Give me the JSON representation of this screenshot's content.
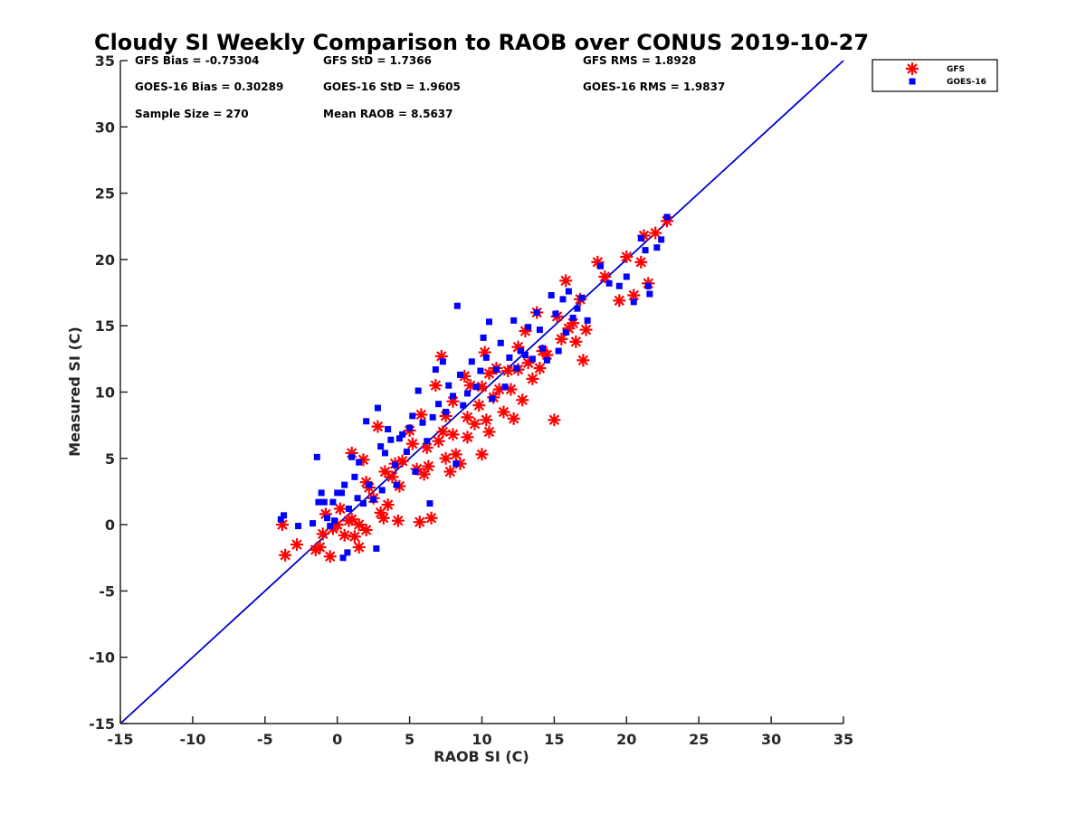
{
  "chart_data": {
    "type": "scatter",
    "title": "Cloudy SI Weekly Comparison to RAOB over CONUS 2019-10-27",
    "xlabel": "RAOB SI (C)",
    "ylabel": "Measured SI (C)",
    "xlim": [
      -15,
      35
    ],
    "ylim": [
      -15,
      35
    ],
    "xticks": [
      "-15",
      "-10",
      "-5",
      "0",
      "5",
      "10",
      "15",
      "20",
      "25",
      "30",
      "35"
    ],
    "yticks": [
      "-15",
      "-10",
      "-5",
      "0",
      "5",
      "10",
      "15",
      "20",
      "25",
      "30",
      "35"
    ],
    "grid": false,
    "legend_position": "top-right, outside plot",
    "reference_line": {
      "from": [
        -15,
        -15
      ],
      "to": [
        35,
        35
      ],
      "color": "#0000cc"
    },
    "stats": [
      {
        "label": "GFS Bias = -0.75304",
        "row": 0,
        "col": 0
      },
      {
        "label": "GFS StD = 1.7366",
        "row": 0,
        "col": 1
      },
      {
        "label": "GFS RMS = 1.8928",
        "row": 0,
        "col": 2
      },
      {
        "label": "GOES-16 Bias = 0.30289",
        "row": 1,
        "col": 0
      },
      {
        "label": "GOES-16 StD = 1.9605",
        "row": 1,
        "col": 1
      },
      {
        "label": "GOES-16 RMS = 1.9837",
        "row": 1,
        "col": 2
      },
      {
        "label": "Sample Size = 270",
        "row": 2,
        "col": 0
      },
      {
        "label": "Mean RAOB = 8.5637",
        "row": 2,
        "col": 1
      }
    ],
    "series": [
      {
        "name": "GFS",
        "marker": "asterisk",
        "color": "#ff0000",
        "points": [
          [
            -3.8,
            0.0
          ],
          [
            -3.6,
            -2.3
          ],
          [
            -2.8,
            -1.5
          ],
          [
            -1.5,
            -1.9
          ],
          [
            -1.2,
            -1.7
          ],
          [
            -1.0,
            -0.7
          ],
          [
            -0.8,
            0.8
          ],
          [
            -0.5,
            -2.4
          ],
          [
            -0.3,
            -0.3
          ],
          [
            0.0,
            0.0
          ],
          [
            0.2,
            1.2
          ],
          [
            0.5,
            -0.8
          ],
          [
            0.8,
            0.3
          ],
          [
            1.0,
            0.4
          ],
          [
            1.0,
            5.4
          ],
          [
            1.2,
            -0.9
          ],
          [
            1.5,
            0.0
          ],
          [
            1.5,
            -1.7
          ],
          [
            1.8,
            4.9
          ],
          [
            2.0,
            3.2
          ],
          [
            2.0,
            -0.4
          ],
          [
            2.2,
            2.8
          ],
          [
            2.5,
            2.0
          ],
          [
            2.8,
            7.4
          ],
          [
            3.0,
            0.9
          ],
          [
            3.2,
            0.5
          ],
          [
            3.3,
            4.0
          ],
          [
            3.5,
            1.5
          ],
          [
            3.8,
            3.6
          ],
          [
            4.0,
            4.6
          ],
          [
            4.2,
            0.3
          ],
          [
            4.3,
            2.9
          ],
          [
            4.5,
            4.8
          ],
          [
            5.0,
            7.1
          ],
          [
            5.2,
            6.1
          ],
          [
            5.5,
            4.2
          ],
          [
            5.7,
            0.2
          ],
          [
            5.8,
            8.3
          ],
          [
            6.0,
            3.8
          ],
          [
            6.2,
            5.8
          ],
          [
            6.3,
            4.4
          ],
          [
            6.5,
            0.5
          ],
          [
            6.8,
            10.5
          ],
          [
            7.0,
            6.3
          ],
          [
            7.2,
            12.7
          ],
          [
            7.3,
            7.0
          ],
          [
            7.5,
            5.0
          ],
          [
            7.5,
            8.2
          ],
          [
            7.8,
            4.0
          ],
          [
            8.0,
            9.3
          ],
          [
            8.0,
            6.8
          ],
          [
            8.2,
            5.3
          ],
          [
            8.5,
            4.6
          ],
          [
            8.8,
            11.2
          ],
          [
            9.0,
            8.1
          ],
          [
            9.0,
            6.6
          ],
          [
            9.2,
            10.5
          ],
          [
            9.5,
            7.6
          ],
          [
            9.8,
            9.0
          ],
          [
            10.0,
            10.4
          ],
          [
            10.0,
            5.3
          ],
          [
            10.2,
            13.0
          ],
          [
            10.3,
            7.9
          ],
          [
            10.5,
            11.4
          ],
          [
            10.5,
            7.0
          ],
          [
            10.8,
            9.6
          ],
          [
            11.0,
            11.8
          ],
          [
            11.2,
            10.2
          ],
          [
            11.5,
            8.5
          ],
          [
            11.8,
            11.6
          ],
          [
            12.0,
            10.2
          ],
          [
            12.2,
            8.0
          ],
          [
            12.5,
            11.7
          ],
          [
            12.5,
            13.4
          ],
          [
            12.8,
            9.4
          ],
          [
            13.0,
            14.6
          ],
          [
            13.2,
            12.2
          ],
          [
            13.5,
            11.0
          ],
          [
            13.8,
            16.0
          ],
          [
            14.0,
            11.8
          ],
          [
            14.2,
            13.1
          ],
          [
            14.5,
            12.8
          ],
          [
            15.0,
            7.9
          ],
          [
            15.2,
            15.7
          ],
          [
            15.5,
            14.0
          ],
          [
            15.8,
            18.4
          ],
          [
            16.0,
            14.8
          ],
          [
            16.3,
            15.2
          ],
          [
            16.5,
            13.8
          ],
          [
            16.8,
            17.0
          ],
          [
            17.0,
            12.4
          ],
          [
            17.2,
            14.7
          ],
          [
            18.0,
            19.8
          ],
          [
            18.5,
            18.7
          ],
          [
            19.5,
            16.9
          ],
          [
            20.0,
            20.2
          ],
          [
            20.5,
            17.3
          ],
          [
            21.0,
            19.8
          ],
          [
            21.2,
            21.8
          ],
          [
            21.5,
            18.2
          ],
          [
            22.0,
            22.0
          ],
          [
            22.8,
            22.9
          ]
        ]
      },
      {
        "name": "GOES-16",
        "marker": "square",
        "color": "#0000ff",
        "points": [
          [
            -3.9,
            0.4
          ],
          [
            -3.7,
            0.7
          ],
          [
            -2.7,
            -0.1
          ],
          [
            -1.7,
            0.1
          ],
          [
            -1.4,
            5.1
          ],
          [
            -1.3,
            1.7
          ],
          [
            -1.1,
            2.4
          ],
          [
            -0.9,
            1.7
          ],
          [
            -0.7,
            0.5
          ],
          [
            -0.5,
            -0.1
          ],
          [
            -0.3,
            1.7
          ],
          [
            -0.2,
            0.3
          ],
          [
            0.0,
            2.4
          ],
          [
            0.3,
            2.4
          ],
          [
            0.4,
            -2.5
          ],
          [
            0.5,
            3.0
          ],
          [
            0.7,
            -2.1
          ],
          [
            0.8,
            1.2
          ],
          [
            1.0,
            5.1
          ],
          [
            1.2,
            3.6
          ],
          [
            1.4,
            2.0
          ],
          [
            1.5,
            4.7
          ],
          [
            1.8,
            1.6
          ],
          [
            2.0,
            7.8
          ],
          [
            2.2,
            3.0
          ],
          [
            2.5,
            1.9
          ],
          [
            2.7,
            -1.8
          ],
          [
            2.8,
            8.8
          ],
          [
            3.0,
            5.9
          ],
          [
            3.1,
            2.6
          ],
          [
            3.3,
            5.4
          ],
          [
            3.5,
            7.2
          ],
          [
            3.7,
            6.4
          ],
          [
            4.0,
            4.5
          ],
          [
            4.1,
            3.0
          ],
          [
            4.3,
            6.5
          ],
          [
            4.5,
            6.8
          ],
          [
            4.8,
            5.5
          ],
          [
            5.0,
            7.3
          ],
          [
            5.2,
            8.2
          ],
          [
            5.4,
            4.0
          ],
          [
            5.6,
            10.1
          ],
          [
            5.9,
            7.7
          ],
          [
            6.2,
            6.3
          ],
          [
            6.4,
            1.6
          ],
          [
            6.6,
            8.1
          ],
          [
            6.8,
            11.7
          ],
          [
            7.0,
            9.1
          ],
          [
            7.3,
            12.3
          ],
          [
            7.5,
            8.5
          ],
          [
            7.7,
            10.5
          ],
          [
            8.0,
            9.7
          ],
          [
            8.2,
            4.6
          ],
          [
            8.3,
            16.5
          ],
          [
            8.5,
            11.3
          ],
          [
            8.7,
            9.0
          ],
          [
            9.0,
            9.9
          ],
          [
            9.3,
            12.3
          ],
          [
            9.6,
            10.4
          ],
          [
            9.9,
            11.6
          ],
          [
            10.1,
            14.1
          ],
          [
            10.3,
            12.6
          ],
          [
            10.5,
            15.3
          ],
          [
            10.7,
            9.5
          ],
          [
            11.0,
            11.7
          ],
          [
            11.3,
            13.7
          ],
          [
            11.6,
            10.4
          ],
          [
            11.9,
            12.6
          ],
          [
            12.2,
            15.4
          ],
          [
            12.4,
            11.8
          ],
          [
            12.7,
            13.1
          ],
          [
            13.0,
            12.8
          ],
          [
            13.2,
            14.9
          ],
          [
            13.5,
            12.5
          ],
          [
            13.8,
            16.0
          ],
          [
            14.0,
            14.7
          ],
          [
            14.2,
            13.3
          ],
          [
            14.5,
            12.4
          ],
          [
            14.8,
            17.3
          ],
          [
            15.1,
            15.9
          ],
          [
            15.3,
            13.1
          ],
          [
            15.6,
            17.0
          ],
          [
            15.8,
            14.5
          ],
          [
            16.0,
            17.6
          ],
          [
            16.3,
            15.6
          ],
          [
            16.6,
            16.3
          ],
          [
            16.9,
            17.1
          ],
          [
            17.3,
            15.4
          ],
          [
            18.2,
            19.5
          ],
          [
            18.8,
            18.2
          ],
          [
            19.5,
            18.0
          ],
          [
            20.0,
            18.7
          ],
          [
            20.5,
            16.8
          ],
          [
            21.0,
            21.6
          ],
          [
            21.3,
            20.7
          ],
          [
            21.5,
            18.0
          ],
          [
            21.6,
            17.4
          ],
          [
            22.1,
            20.9
          ],
          [
            22.4,
            21.5
          ],
          [
            22.8,
            23.2
          ]
        ]
      }
    ]
  }
}
